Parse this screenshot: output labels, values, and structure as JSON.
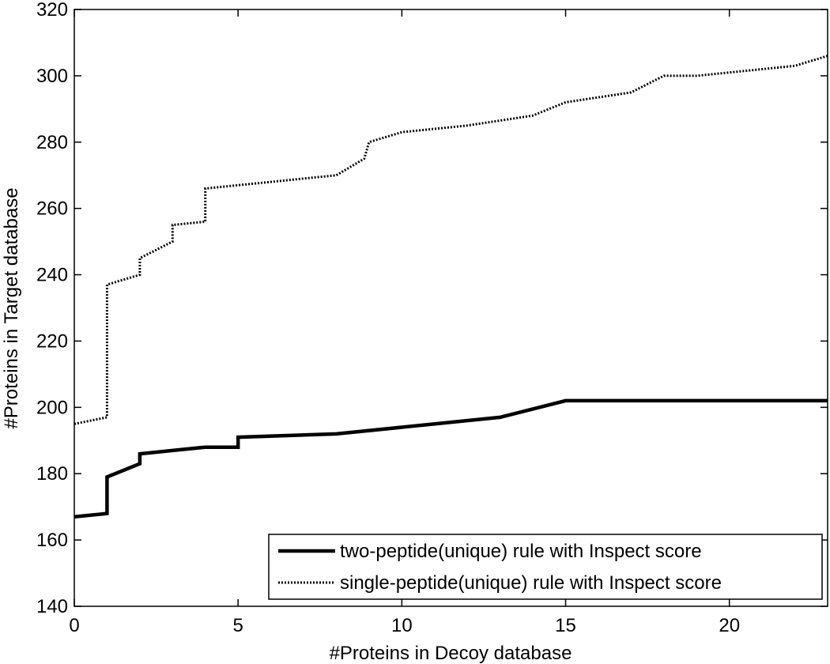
{
  "chart_data": {
    "type": "line",
    "title": "",
    "xlabel": "#Proteins in Decoy database",
    "ylabel": "#Proteins in Target database",
    "xlim": [
      0,
      23
    ],
    "ylim": [
      140,
      320
    ],
    "xticks": [
      0,
      5,
      10,
      15,
      20
    ],
    "yticks": [
      140,
      160,
      180,
      200,
      220,
      240,
      260,
      280,
      300,
      320
    ],
    "grid": false,
    "legend_position": "bottom-right",
    "series": [
      {
        "name": "two-peptide(unique) rule with Inspect score",
        "style": "solid",
        "color": "#000000",
        "x": [
          0,
          1,
          1,
          2,
          2,
          3,
          4,
          5,
          5,
          8,
          13,
          15,
          18,
          21,
          23
        ],
        "y": [
          167,
          168,
          179,
          183,
          186,
          187,
          188,
          188,
          191,
          192,
          197,
          202,
          202,
          202,
          202
        ]
      },
      {
        "name": "single-peptide(unique) rule with Inspect score",
        "style": "dotted",
        "color": "#000000",
        "x": [
          0,
          1,
          1,
          2,
          2,
          3,
          3,
          4,
          4,
          8,
          8.85,
          9,
          10,
          12,
          14,
          15,
          17,
          18,
          19,
          20,
          22,
          23
        ],
        "y": [
          195,
          197,
          237,
          240,
          245,
          250,
          255,
          256,
          266,
          270,
          275,
          280,
          283,
          285,
          288,
          292,
          295,
          300,
          300,
          301,
          303,
          306
        ]
      }
    ]
  }
}
